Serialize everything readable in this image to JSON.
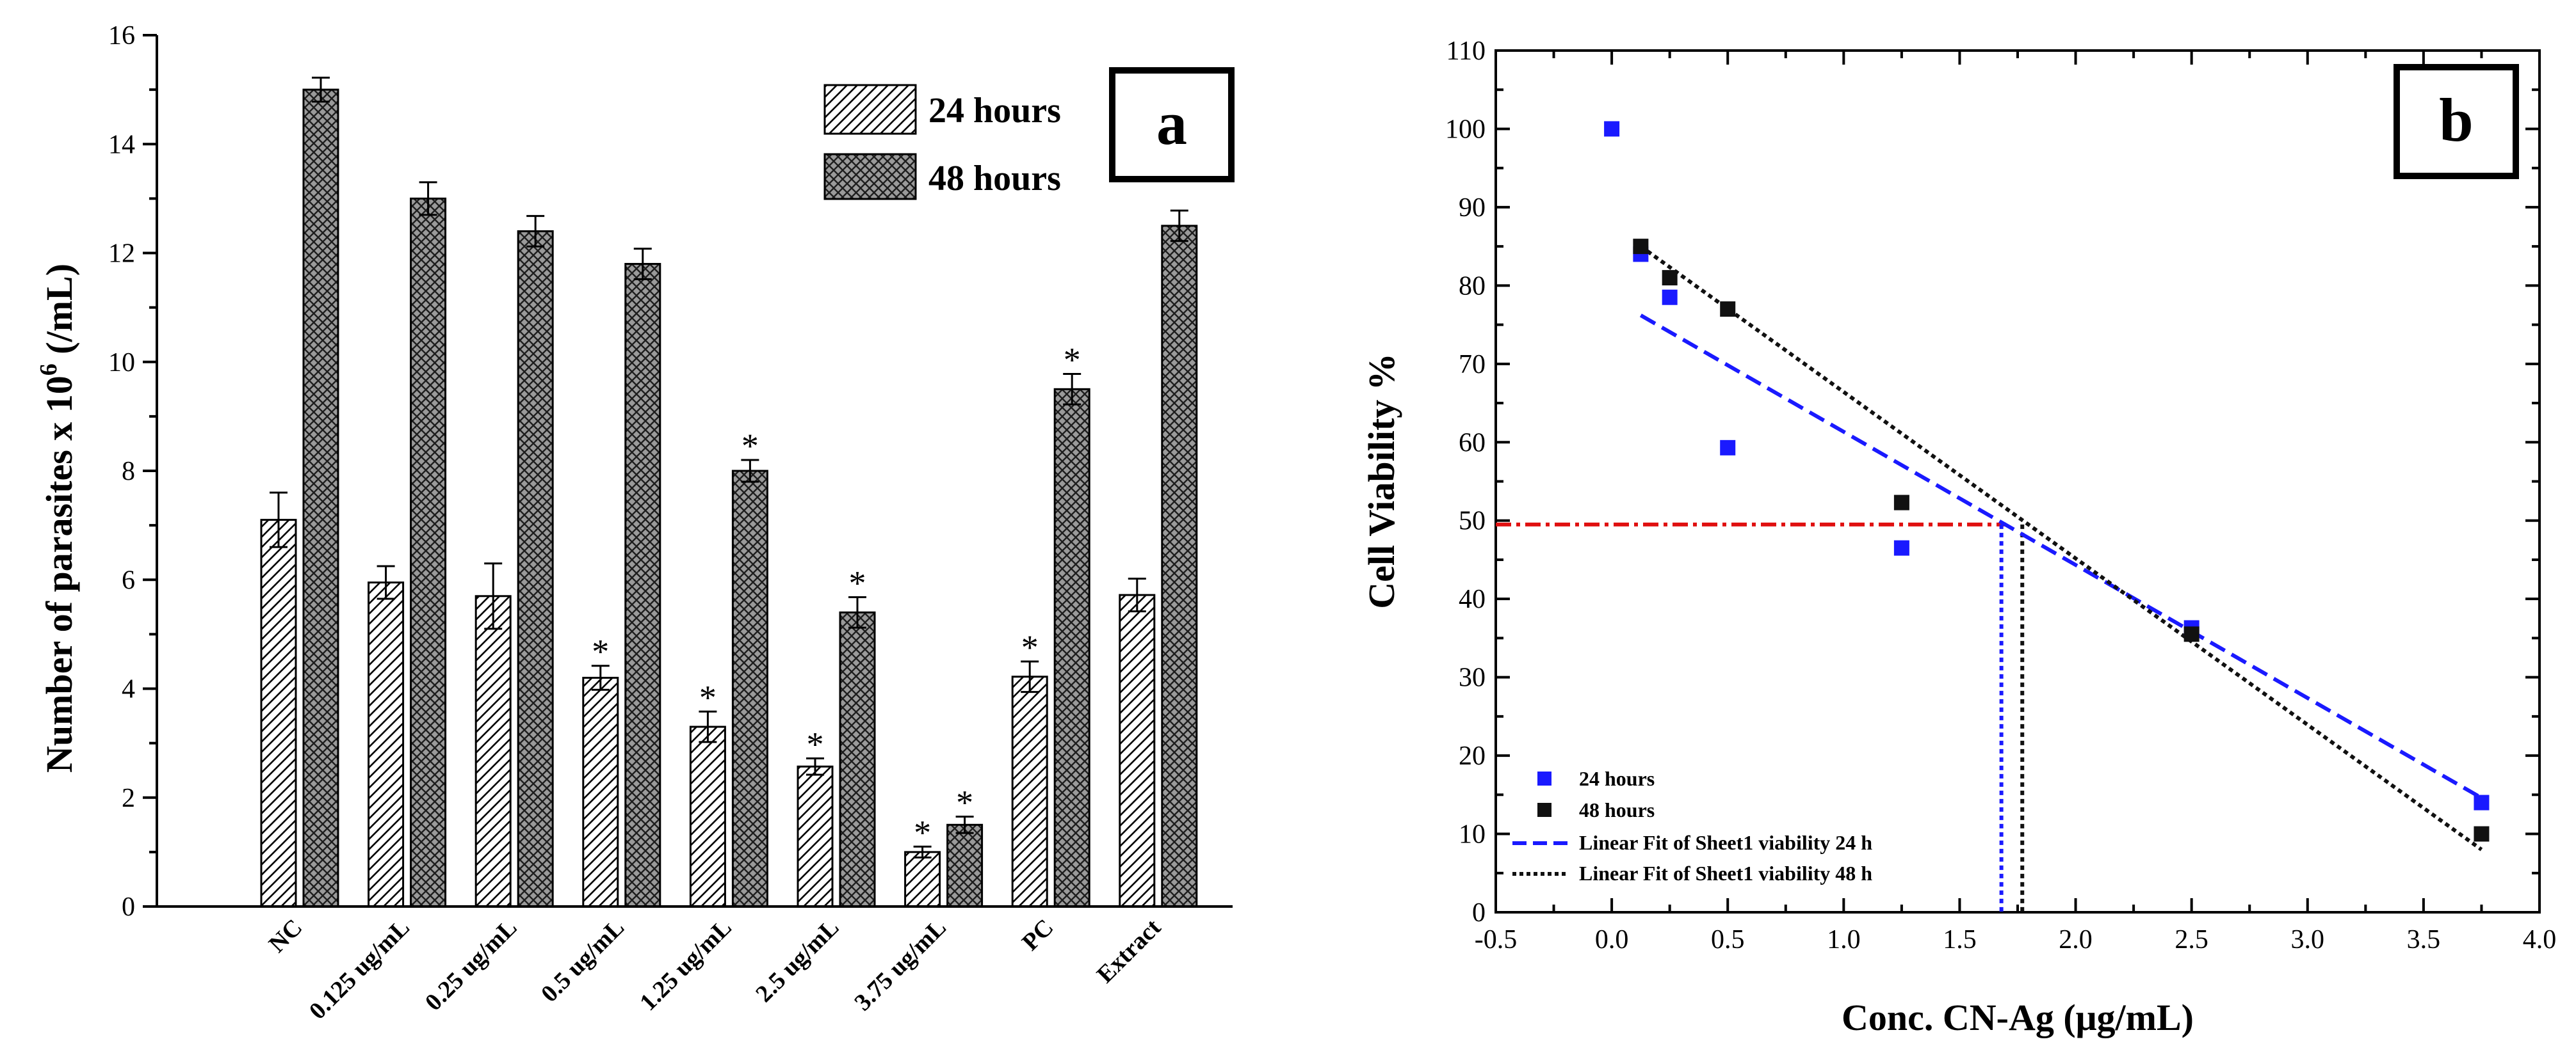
{
  "chart_data": [
    {
      "type": "bar",
      "panel_label": "a",
      "title": "",
      "xlabel": "",
      "ylabel_main": "Number of parasites x 10",
      "ylabel_sup": "6",
      "ylabel_unit": " (/mL)",
      "ylim": [
        0,
        16
      ],
      "yticks": [
        "0",
        "2",
        "4",
        "6",
        "8",
        "10",
        "12",
        "14",
        "16"
      ],
      "categories": [
        "NC",
        "0.125 ug/mL",
        "0.25 ug/mL",
        "0.5 ug/mL",
        "1.25 ug/mL",
        "2.5 ug/mL",
        "3.75 ug/mL",
        "PC",
        "Extract"
      ],
      "series": [
        {
          "name": "24 hours",
          "pattern": "diagonal-hatch",
          "values": [
            7.1,
            5.95,
            5.7,
            4.2,
            3.3,
            2.57,
            1.0,
            4.22,
            5.72
          ],
          "errors": [
            0.5,
            0.3,
            0.6,
            0.22,
            0.28,
            0.15,
            0.1,
            0.28,
            0.3
          ],
          "significant": [
            false,
            false,
            false,
            true,
            true,
            true,
            true,
            true,
            false
          ]
        },
        {
          "name": "48 hours",
          "pattern": "crosshatch",
          "values": [
            15.0,
            13.0,
            12.4,
            11.8,
            8.0,
            5.4,
            1.5,
            9.5,
            12.5
          ],
          "errors": [
            0.22,
            0.3,
            0.28,
            0.28,
            0.2,
            0.28,
            0.15,
            0.28,
            0.28
          ],
          "significant": [
            false,
            false,
            false,
            false,
            true,
            true,
            true,
            true,
            false
          ]
        }
      ],
      "significance_marker": "*",
      "legend": [
        "24 hours",
        "48 hours"
      ],
      "legend_position": "top-right"
    },
    {
      "type": "scatter",
      "panel_label": "b",
      "title": "",
      "xlabel": "Conc. CN-Ag (μg/mL)",
      "ylabel": "Cell Viability %",
      "xlim": [
        -0.5,
        4.0
      ],
      "ylim": [
        0,
        110
      ],
      "xticks": [
        "-0.5",
        "0.0",
        "0.5",
        "1.0",
        "1.5",
        "2.0",
        "2.5",
        "3.0",
        "3.5",
        "4.0"
      ],
      "yticks": [
        "0",
        "10",
        "20",
        "30",
        "40",
        "50",
        "60",
        "70",
        "80",
        "90",
        "100",
        "110"
      ],
      "series": [
        {
          "name": "24 hours",
          "color": "#1a1aff",
          "x": [
            0,
            0.125,
            0.25,
            0.5,
            1.25,
            2.5,
            3.75
          ],
          "y": [
            100,
            84,
            78.5,
            59.3,
            46.5,
            36.3,
            14
          ]
        },
        {
          "name": "48 hours",
          "color": "#111111",
          "x": [
            0.125,
            0.25,
            0.5,
            1.25,
            2.5,
            3.75
          ],
          "y": [
            85,
            81,
            77,
            52.3,
            35.5,
            10
          ]
        }
      ],
      "fits": [
        {
          "name": "Linear Fit of Sheet1 viability 24 h",
          "color": "#1a1aff",
          "style": "dashed",
          "x": [
            0.125,
            3.75
          ],
          "y": [
            76.2,
            14.6
          ]
        },
        {
          "name": "Linear Fit of Sheet1 viability 48 h",
          "color": "#111111",
          "style": "dotted",
          "x": [
            0.125,
            3.75
          ],
          "y": [
            85.0,
            8.0
          ]
        }
      ],
      "reference_lines": [
        {
          "kind": "horizontal",
          "y": 49.5,
          "x_to": 1.7,
          "color": "#e01010",
          "style": "dash-dot"
        },
        {
          "kind": "vertical",
          "x": 1.68,
          "y_to": 49.5,
          "color": "#1a1aff",
          "style": "dotted"
        },
        {
          "kind": "vertical",
          "x": 1.77,
          "y_to": 49.5,
          "color": "#111111",
          "style": "dotted"
        }
      ],
      "legend": [
        "24 hours",
        "48 hours",
        "Linear Fit of Sheet1 viability 24 h",
        "Linear Fit of Sheet1 viability 48 h"
      ],
      "legend_position": "bottom-left"
    }
  ]
}
